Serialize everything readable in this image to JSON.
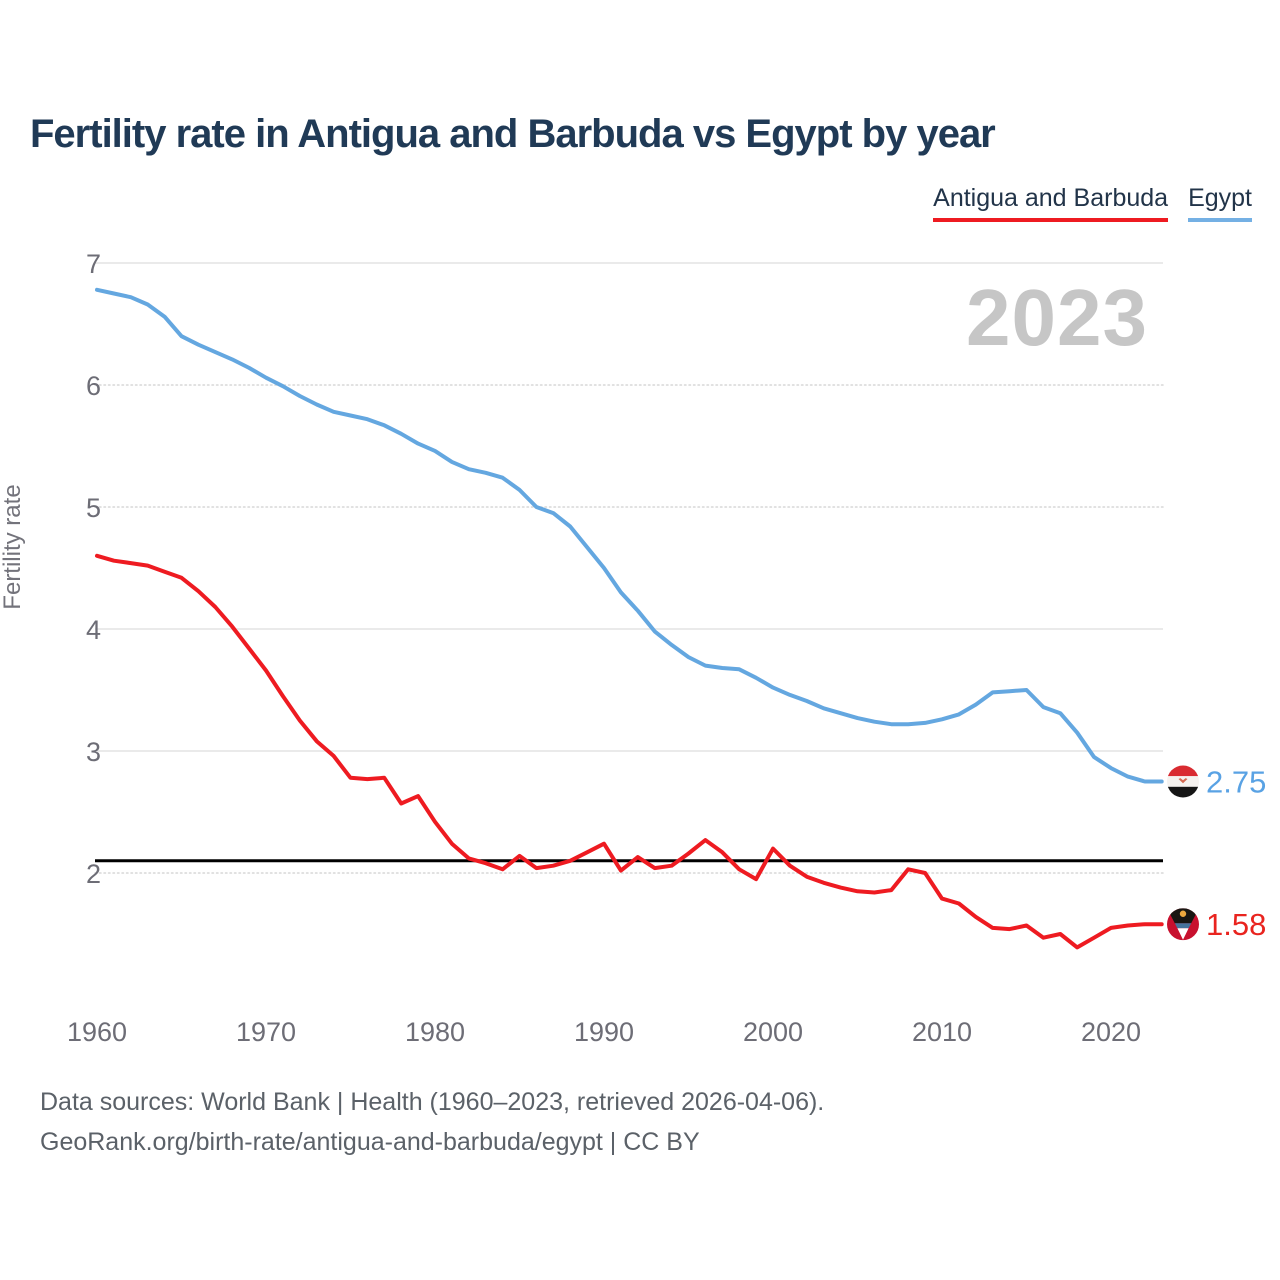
{
  "header": {
    "title": "Fertility rate in Antigua and Barbuda vs Egypt by year"
  },
  "legend": {
    "antigua": {
      "label": "Antigua and Barbuda",
      "color": "#ee1b21"
    },
    "egypt": {
      "label": "Egypt",
      "color": "#74b0e4"
    }
  },
  "watermark": "2023",
  "footer": {
    "line1": "Data sources: World Bank | Health (1960–2023, retrieved 2026-04-06).",
    "line2": "GeoRank.org/birth-rate/antigua-and-barbuda/egypt | CC BY"
  },
  "chart_data": {
    "type": "line",
    "title": "Fertility rate in Antigua and Barbuda vs Egypt by year",
    "xlabel": "",
    "ylabel": "Fertility rate",
    "xlim": [
      1960,
      2023
    ],
    "ylim": [
      1.25,
      7.0
    ],
    "x_ticks": [
      1960,
      1970,
      1980,
      1990,
      2000,
      2010,
      2020
    ],
    "y_ticks": [
      7,
      6,
      5,
      4,
      3,
      2
    ],
    "grid": "horizontal",
    "legend_position": "top-right",
    "reference_line": {
      "value": 2.1,
      "color": "#000000"
    },
    "current_year_label": "2023",
    "x": [
      1960,
      1961,
      1962,
      1963,
      1964,
      1965,
      1966,
      1967,
      1968,
      1969,
      1970,
      1971,
      1972,
      1973,
      1974,
      1975,
      1976,
      1977,
      1978,
      1979,
      1980,
      1981,
      1982,
      1983,
      1984,
      1985,
      1986,
      1987,
      1988,
      1989,
      1990,
      1991,
      1992,
      1993,
      1994,
      1995,
      1996,
      1997,
      1998,
      1999,
      2000,
      2001,
      2002,
      2003,
      2004,
      2005,
      2006,
      2007,
      2008,
      2009,
      2010,
      2011,
      2012,
      2013,
      2014,
      2015,
      2016,
      2017,
      2018,
      2019,
      2020,
      2021,
      2022,
      2023
    ],
    "series": [
      {
        "name": "Egypt",
        "color": "#64a7e0",
        "label_color": "#59a2e4",
        "end_label": "2.75",
        "end_value": 2.75,
        "values": [
          6.78,
          6.75,
          6.72,
          6.66,
          6.56,
          6.4,
          6.33,
          6.27,
          6.21,
          6.14,
          6.06,
          5.99,
          5.91,
          5.84,
          5.78,
          5.75,
          5.72,
          5.67,
          5.6,
          5.52,
          5.46,
          5.37,
          5.31,
          5.28,
          5.24,
          5.14,
          5.0,
          4.95,
          4.84,
          4.67,
          4.5,
          4.3,
          4.15,
          3.98,
          3.87,
          3.77,
          3.7,
          3.68,
          3.67,
          3.6,
          3.52,
          3.46,
          3.41,
          3.35,
          3.31,
          3.27,
          3.24,
          3.22,
          3.22,
          3.23,
          3.26,
          3.3,
          3.38,
          3.48,
          3.49,
          3.5,
          3.36,
          3.31,
          3.15,
          2.95,
          2.86,
          2.79,
          2.75,
          2.75
        ]
      },
      {
        "name": "Antigua and Barbuda",
        "color": "#ee1b21",
        "label_color": "#e9241f",
        "end_label": "1.58",
        "end_value": 1.58,
        "values": [
          4.6,
          4.56,
          4.54,
          4.52,
          4.47,
          4.42,
          4.31,
          4.18,
          4.02,
          3.84,
          3.66,
          3.45,
          3.25,
          3.08,
          2.96,
          2.78,
          2.77,
          2.78,
          2.57,
          2.63,
          2.42,
          2.24,
          2.12,
          2.08,
          2.03,
          2.14,
          2.04,
          2.06,
          2.1,
          2.17,
          2.24,
          2.02,
          2.13,
          2.04,
          2.06,
          2.16,
          2.27,
          2.17,
          2.03,
          1.95,
          2.2,
          2.06,
          1.97,
          1.92,
          1.88,
          1.85,
          1.84,
          1.86,
          2.03,
          2.0,
          1.79,
          1.75,
          1.64,
          1.55,
          1.54,
          1.57,
          1.47,
          1.5,
          1.39,
          1.47,
          1.55,
          1.57,
          1.58,
          1.58
        ]
      }
    ]
  }
}
